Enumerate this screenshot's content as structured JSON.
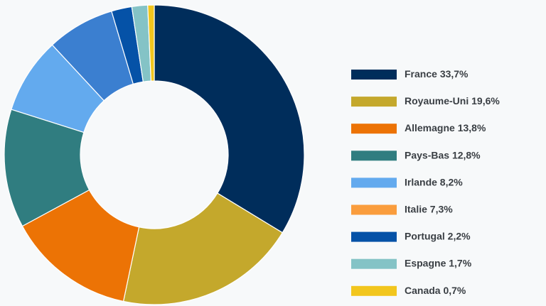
{
  "chart_data": {
    "type": "donut",
    "categories": [
      "France",
      "Royaume-Uni",
      "Allemagne",
      "Pays-Bas",
      "Irlande",
      "Italie",
      "Portugal",
      "Espagne",
      "Canada"
    ],
    "values": [
      33.7,
      19.6,
      13.8,
      12.8,
      8.2,
      7.3,
      2.2,
      1.7,
      0.7
    ],
    "value_labels": [
      "33,7%",
      "19,6%",
      "13,8%",
      "12,8%",
      "8,2%",
      "7,3%",
      "2,2%",
      "1,7%",
      "0,7%"
    ],
    "colors": [
      "#002d5b",
      "#c4a82c",
      "#ec7305",
      "#307d80",
      "#63aaee",
      "#fa9d3d",
      "#0552a7",
      "#84c3c6",
      "#f2c61d"
    ],
    "slice_colors": [
      "#002d5b",
      "#c4a82c",
      "#ec7305",
      "#307d80",
      "#63aaee",
      "#3b7fd0",
      "#0552a7",
      "#84c3c6",
      "#f2c61d"
    ],
    "legend": "right"
  }
}
